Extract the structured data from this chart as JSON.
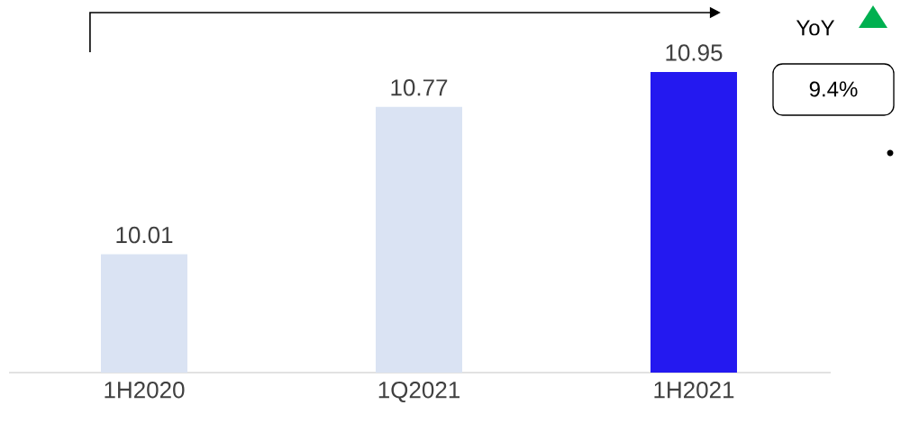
{
  "chart_data": {
    "type": "bar",
    "categories": [
      "1H2020",
      "1Q2021",
      "1H2021"
    ],
    "values": [
      10.01,
      10.77,
      10.95
    ],
    "colors": [
      "#dae3f3",
      "#dae3f3",
      "#2419f0"
    ],
    "ylim": [
      9.4,
      10.95
    ],
    "tick_labels": "x",
    "data_labels": true,
    "annotations": [
      "YoY",
      "9.4%"
    ]
  }
}
